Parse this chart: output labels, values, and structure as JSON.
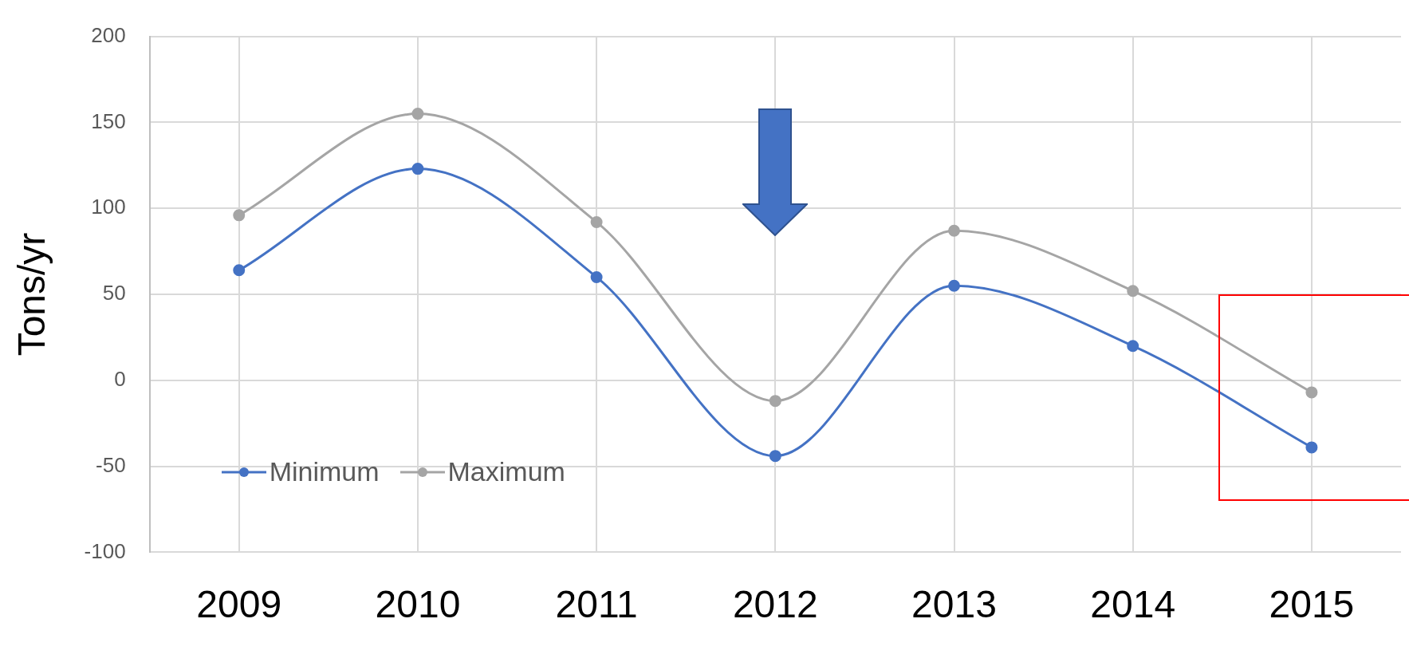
{
  "chart_data": {
    "type": "line",
    "ylabel": "Tons/yr",
    "categories": [
      "2009",
      "2010",
      "2011",
      "2012",
      "2013",
      "2014",
      "2015"
    ],
    "series": [
      {
        "name": "Minimum",
        "color": "#4472c4",
        "values": [
          64,
          123,
          60,
          -44,
          55,
          20,
          -39
        ]
      },
      {
        "name": "Maximum",
        "color": "#a5a5a5",
        "values": [
          96,
          155,
          92,
          -12,
          87,
          52,
          -7
        ]
      }
    ],
    "ylim": [
      -100,
      200
    ],
    "yticks": [
      -100,
      -50,
      0,
      50,
      100,
      150,
      200
    ],
    "grid": true,
    "legend": "bottom left",
    "marker": "circle",
    "line_style": "solid"
  }
}
